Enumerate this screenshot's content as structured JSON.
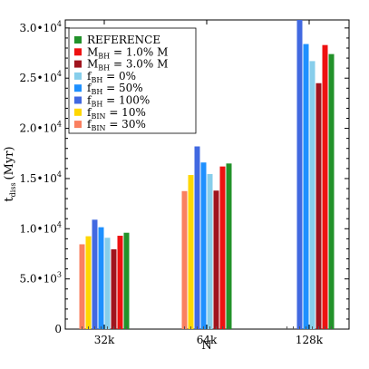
{
  "chart_data": {
    "type": "bar",
    "title": "",
    "xlabel": "N",
    "ylabel": "t",
    "ylabel_sub": "diss",
    "ylabel_unit": "(Myr)",
    "categories": [
      "32k",
      "64k",
      "128k"
    ],
    "ylim": [
      0,
      30800
    ],
    "y_ticks": [
      {
        "value": 0,
        "mantissa": "0",
        "exponent": ""
      },
      {
        "value": 5000,
        "mantissa": "5.0•10",
        "exponent": "3"
      },
      {
        "value": 10000,
        "mantissa": "1.0•10",
        "exponent": "4"
      },
      {
        "value": 15000,
        "mantissa": "1.5•10",
        "exponent": "4"
      },
      {
        "value": 20000,
        "mantissa": "2.0•10",
        "exponent": "4"
      },
      {
        "value": 25000,
        "mantissa": "2.5•10",
        "exponent": "4"
      },
      {
        "value": 30000,
        "mantissa": "3.0•10",
        "exponent": "4"
      }
    ],
    "grid": false,
    "legend_position": "top-left",
    "series": [
      {
        "key": "fBIN30",
        "name": "f",
        "sub": "BIN",
        "suffix": " = 30%",
        "color": "#fa8060",
        "values": [
          8450,
          13750,
          null
        ]
      },
      {
        "key": "fBIN10",
        "name": "f",
        "sub": "BIN",
        "suffix": " = 10%",
        "color": "#ffd700",
        "values": [
          9250,
          15350,
          null
        ]
      },
      {
        "key": "fBH100",
        "name": "f",
        "sub": "BH",
        "suffix": " = 100%",
        "color": "#4169e1",
        "values": [
          10900,
          18200,
          30800
        ]
      },
      {
        "key": "fBH50",
        "name": "f",
        "sub": "BH",
        "suffix": " = 50%",
        "color": "#1e90ff",
        "values": [
          10150,
          16600,
          28400
        ]
      },
      {
        "key": "fBH0",
        "name": "f",
        "sub": "BH",
        "suffix": " = 0%",
        "color": "#87ceeb",
        "values": [
          9100,
          15450,
          26700
        ]
      },
      {
        "key": "MBH3",
        "name": "M",
        "sub": "BH",
        "suffix": " = 3.0% M",
        "color": "#a0141e",
        "values": [
          7950,
          13800,
          24500
        ]
      },
      {
        "key": "MBH1",
        "name": "M",
        "sub": "BH",
        "suffix": " = 1.0% M",
        "color": "#ee1111",
        "values": [
          9300,
          16200,
          28300
        ]
      },
      {
        "key": "REF",
        "name": "REFERENCE",
        "sub": "",
        "suffix": "",
        "color": "#22922a",
        "values": [
          9600,
          16500,
          27400
        ]
      }
    ],
    "legend_order": [
      "REF",
      "MBH1",
      "MBH3",
      "fBH0",
      "fBH50",
      "fBH100",
      "fBIN10",
      "fBIN30"
    ]
  }
}
